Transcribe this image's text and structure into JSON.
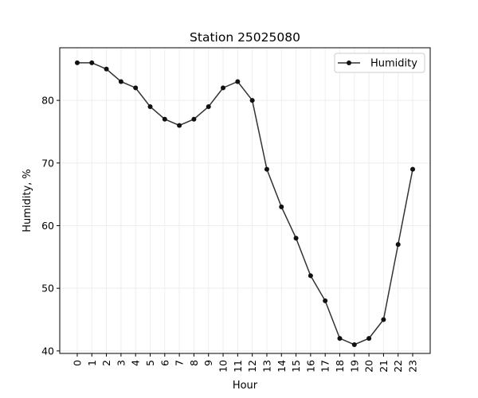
{
  "chart_data": {
    "type": "line",
    "title": "Station 25025080",
    "xlabel": "Hour",
    "ylabel": "Humidity, %",
    "x": [
      0,
      1,
      2,
      3,
      4,
      5,
      6,
      7,
      8,
      9,
      10,
      11,
      12,
      13,
      14,
      15,
      16,
      17,
      18,
      19,
      20,
      21,
      22,
      23
    ],
    "series": [
      {
        "name": "Humidity",
        "values": [
          86,
          86,
          85,
          83,
          82,
          79,
          77,
          76,
          77,
          79,
          82,
          83,
          80,
          69,
          63,
          58,
          52,
          48,
          42,
          41,
          42,
          45,
          57,
          69
        ]
      }
    ],
    "xlim": [
      -1.2,
      24.2
    ],
    "ylim": [
      39.6,
      88.4
    ],
    "yticks": [
      40,
      50,
      60,
      70,
      80
    ],
    "grid": true,
    "legend_position": "top-right",
    "line_color": "#333333",
    "marker_color": "#111111"
  }
}
